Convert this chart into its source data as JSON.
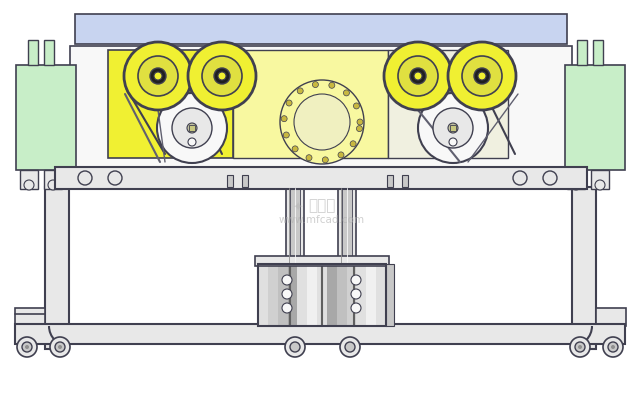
{
  "bg_color": "#ffffff",
  "belt_color": "#c8d4f0",
  "yellow_fill": "#f0f032",
  "yellow_light": "#f8f8a0",
  "green_fill": "#c8eec8",
  "light_gray": "#e8e8e8",
  "mid_gray": "#c8c8c8",
  "dark_gray": "#909090",
  "darker_gray": "#606060",
  "white_fill": "#f8f8f8",
  "outline_color": "#404050",
  "thin_line": "#606070",
  "watermark_color": "#b0b0b0",
  "stripe_colors": [
    "#e0e0e0",
    "#d0d0d0",
    "#c0c0c0",
    "#a8a8a8",
    "#e0e0e0",
    "#f0f0f0",
    "#e0e0e0",
    "#a8a8a8",
    "#c0c0c0",
    "#d0d0d0",
    "#e0e0e0",
    "#f0f0f0",
    "#e0e0e0"
  ]
}
